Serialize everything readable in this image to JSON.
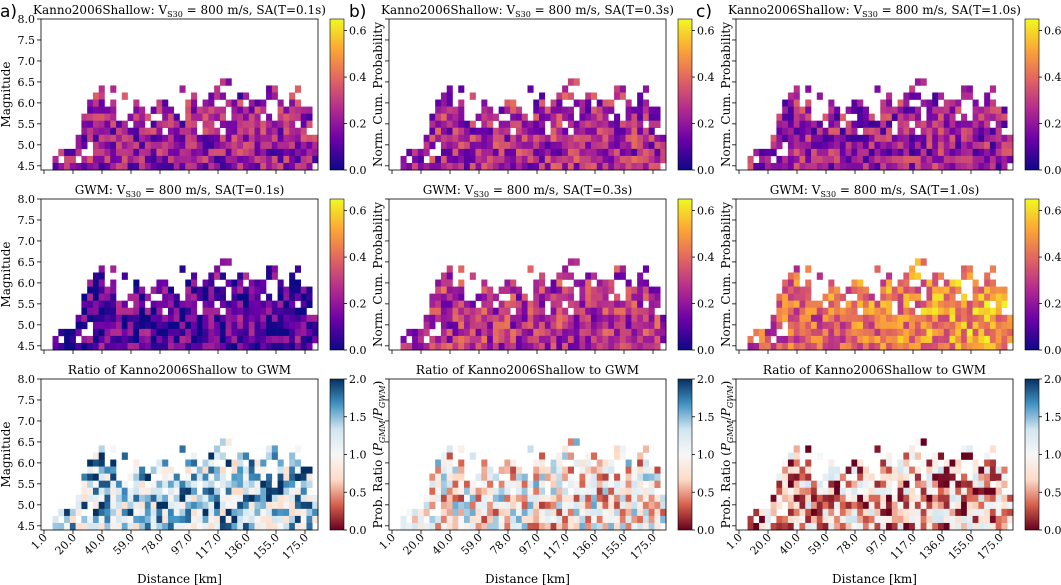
{
  "figure": {
    "panel_letters": [
      "a)",
      "b)",
      "c)"
    ],
    "xlabel": "Distance [km]",
    "ylabel": "Magnitude",
    "x_tick_labels": [
      "1.0",
      "20.0",
      "40.0",
      "59.0",
      "78.0",
      "97.0",
      "117.0",
      "136.0",
      "155.0",
      "175.0"
    ],
    "y_tick_labels": [
      "4.5",
      "5.0",
      "5.5",
      "6.0",
      "6.5",
      "7.0",
      "7.5",
      "8.0"
    ],
    "colorbar_prob": {
      "label": "Norm. Cum. Probability",
      "ticks": [
        "0.0",
        "0.2",
        "0.4",
        "0.6"
      ]
    },
    "colorbar_ratio": {
      "label": "Prob. Ratio (P_GMM/P_GWM)",
      "label_main": "Prob. Ratio (",
      "label_p1": "P",
      "label_s1": "GMM",
      "label_slash": "/",
      "label_p2": "P",
      "label_s2": "GWM",
      "label_close": ")",
      "ticks": [
        "0.0",
        "0.5",
        "1.0",
        "1.5",
        "2.0"
      ]
    }
  },
  "columns": [
    {
      "id": "a",
      "title_kanno": {
        "pre": "Kanno2006Shallow: V",
        "sub": "S30",
        "post": " = 800 m/s, SA(T=0.1s)"
      },
      "title_gwm": {
        "pre": "GWM: V",
        "sub": "S30",
        "post": " = 800 m/s, SA(T=0.1s)"
      },
      "title_ratio": "Ratio of Kanno2006Shallow to GWM"
    },
    {
      "id": "b",
      "title_kanno": {
        "pre": "Kanno2006Shallow: V",
        "sub": "S30",
        "post": " = 800 m/s, SA(T=0.3s)"
      },
      "title_gwm": {
        "pre": "GWM: V",
        "sub": "S30",
        "post": " = 800 m/s, SA(T=0.3s)"
      },
      "title_ratio": "Ratio of Kanno2006Shallow to GWM"
    },
    {
      "id": "c",
      "title_kanno": {
        "pre": "Kanno2006Shallow: V",
        "sub": "S30",
        "post": " = 800 m/s, SA(T=1.0s)"
      },
      "title_gwm": {
        "pre": "GWM: V",
        "sub": "S30",
        "post": " = 800 m/s, SA(T=1.0s)"
      },
      "title_ratio": "Ratio of Kanno2006Shallow to GWM"
    }
  ],
  "chart_data": {
    "type": "heatmap",
    "x": {
      "label": "Distance [km]",
      "min": 1,
      "max": 185,
      "bins": 40
    },
    "y": {
      "label": "Magnitude",
      "min": 4.4,
      "max": 8.0,
      "bins": 40
    },
    "prob_range": [
      0,
      0.65
    ],
    "ratio_range": [
      0,
      2
    ],
    "colormaps": {
      "prob": [
        "#0d0887",
        "#6a00a8",
        "#b12a90",
        "#e16462",
        "#fca636",
        "#f0f921"
      ],
      "ratio": [
        "#67001f",
        "#d6604d",
        "#fddbc7",
        "#f7f7f7",
        "#d1e5f0",
        "#4393c3",
        "#053061"
      ]
    },
    "occupancy": [
      [
        16,
        "................................................"
      ],
      [
        15,
        "................................................"
      ],
      [
        14,
        "................................................"
      ],
      [
        13,
        "................................................"
      ],
      [
        12,
        "...............................##..............."
      ],
      [
        11,
        "..........#.#...........#.....#........##...#..."
      ],
      [
        10,
        ".........##...#...........#..###..##...##..#..."
      ],
      [
        9,
        "........###.#...#...##...##.##..###.###..#.##..."
      ],
      [
        8,
        "........#####...##.####..#######.######..######"
      ],
      [
        7,
        ".......######..####..###.#######.#####.#.######"
      ],
      [
        6,
        ".......########.##.########.##.#############.##"
      ],
      [
        5,
        ".......##############.#####.###.##############."
      ],
      [
        4,
        "......##########################################"
      ],
      [
        3,
        "......##.#######################################"
      ],
      [
        2,
        "...####..#######################################"
      ],
      [
        1,
        "..#.##.#########################################"
      ],
      [
        0,
        "..#############################################."
      ]
    ],
    "panels": [
      {
        "column": "a",
        "row": "kanno",
        "quantity": "normalized cumulative probability",
        "mean": 0.22
      },
      {
        "column": "a",
        "row": "gwm",
        "quantity": "normalized cumulative probability",
        "mean": 0.12
      },
      {
        "column": "a",
        "row": "ratio",
        "quantity": "probability ratio",
        "mean": 1.35
      },
      {
        "column": "b",
        "row": "kanno",
        "quantity": "normalized cumulative probability",
        "mean": 0.25
      },
      {
        "column": "b",
        "row": "gwm",
        "quantity": "normalized cumulative probability",
        "mean": 0.27
      },
      {
        "column": "b",
        "row": "ratio",
        "quantity": "probability ratio",
        "mean": 0.9
      },
      {
        "column": "c",
        "row": "kanno",
        "quantity": "normalized cumulative probability",
        "mean": 0.22
      },
      {
        "column": "c",
        "row": "gwm",
        "quantity": "normalized cumulative probability",
        "mean": 0.34
      },
      {
        "column": "c",
        "row": "ratio",
        "quantity": "probability ratio",
        "mean": 0.65
      }
    ]
  }
}
